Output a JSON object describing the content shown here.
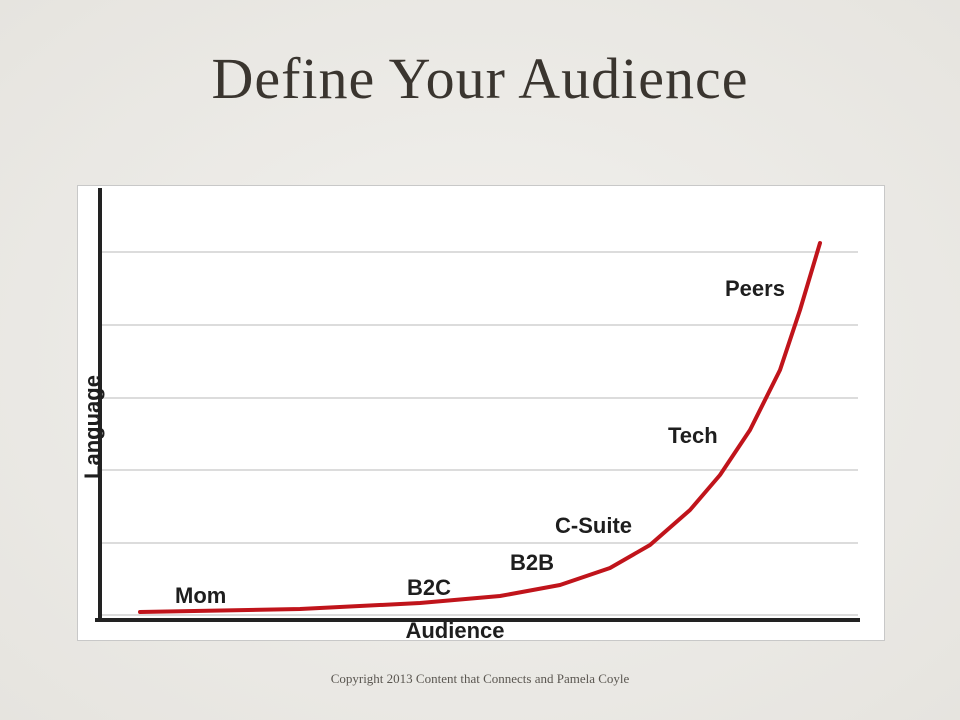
{
  "title": "Define Your Audience",
  "figure": {
    "y_axis_label": "Language",
    "x_axis_label": "Audience",
    "labels": [
      "Mom",
      "B2C",
      "B2B",
      "C-Suite",
      "Tech",
      "Peers"
    ]
  },
  "footer": "Copyright 2013 Content that Connects and Pamela Coyle"
}
